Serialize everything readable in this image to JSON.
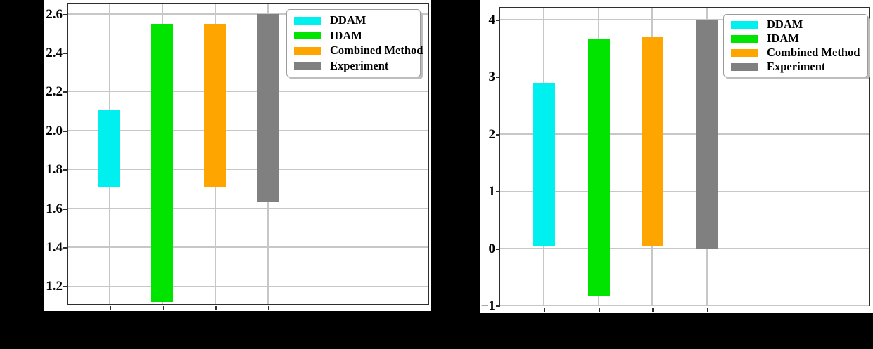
{
  "canvas": {
    "background": "#000000"
  },
  "chart_data": [
    {
      "id": "left-chart",
      "type": "bar",
      "bar_style": "floating-range",
      "title": "",
      "xlabel": "",
      "ylabel": "",
      "categories": [
        "DDAM",
        "IDAM",
        "Combined Method",
        "Experiment"
      ],
      "series": [
        {
          "name": "DDAM",
          "color": "#00F0F0",
          "low": 1.71,
          "high": 2.11
        },
        {
          "name": "IDAM",
          "color": "#00E400",
          "low": 1.12,
          "high": 2.55
        },
        {
          "name": "Combined Method",
          "color": "#FFA500",
          "low": 1.71,
          "high": 2.55
        },
        {
          "name": "Experiment",
          "color": "#808080",
          "low": 1.63,
          "high": 2.6
        }
      ],
      "ylim": [
        1.107,
        2.653
      ],
      "yticks": [
        2.6,
        2.4,
        2.2,
        2.0,
        1.8,
        1.6,
        1.4,
        1.2
      ],
      "ytick_labels": [
        "2.6",
        "2.4",
        "2.2",
        "2.0",
        "1.8",
        "1.6",
        "1.4",
        "1.2"
      ],
      "xtick_labels": [],
      "grid": true,
      "legend": {
        "position": "upper right",
        "entries": [
          "DDAM",
          "IDAM",
          "Combined Method",
          "Experiment"
        ]
      }
    },
    {
      "id": "right-chart",
      "type": "bar",
      "bar_style": "floating-range",
      "title": "",
      "xlabel": "",
      "ylabel": "",
      "categories": [
        "DDAM",
        "IDAM",
        "Combined Method",
        "Experiment"
      ],
      "series": [
        {
          "name": "DDAM",
          "color": "#00F0F0",
          "low": 0.05,
          "high": 2.9
        },
        {
          "name": "IDAM",
          "color": "#00E400",
          "low": -0.82,
          "high": 3.67
        },
        {
          "name": "Combined Method",
          "color": "#FFA500",
          "low": 0.05,
          "high": 3.71
        },
        {
          "name": "Experiment",
          "color": "#808080",
          "low": 0.0,
          "high": 4.0
        }
      ],
      "ylim": [
        -1.0,
        4.209
      ],
      "yticks": [
        4,
        3,
        2,
        1,
        0,
        -1
      ],
      "ytick_labels": [
        "4",
        "3",
        "2",
        "1",
        "0",
        "−1"
      ],
      "xtick_labels": [],
      "grid": true,
      "legend": {
        "position": "upper right",
        "entries": [
          "DDAM",
          "IDAM",
          "Combined Method",
          "Experiment"
        ]
      }
    }
  ]
}
